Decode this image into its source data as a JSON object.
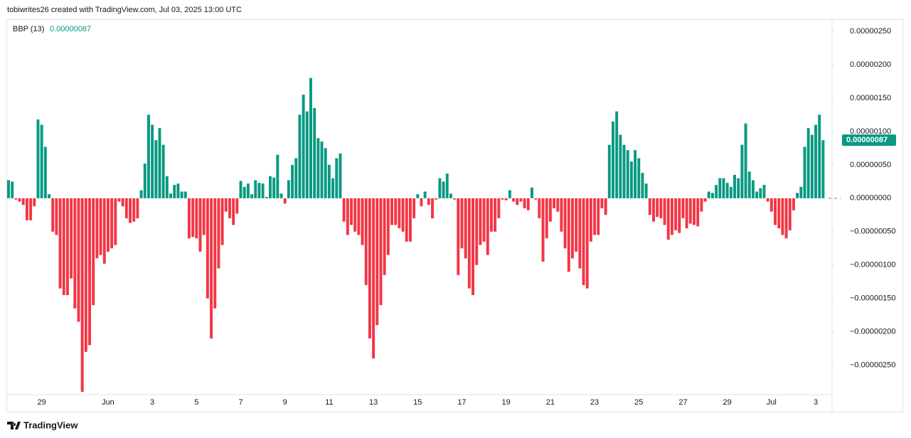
{
  "header": "tobiwrites26 created with TradingView.com, Jul 03, 2025 13:00 UTC",
  "footer": "TradingView",
  "chart_data": {
    "type": "bar",
    "indicator": "BBP (13)",
    "last_value_label": "0.00000087",
    "positive_color": "#089981",
    "negative_color": "#f23645",
    "grid": false,
    "ylim": [
      -2.94e-06,
      2.67e-06
    ],
    "yticks": [
      {
        "value": 2.5e-06,
        "label": "0.00000250"
      },
      {
        "value": 2e-06,
        "label": "0.00000200"
      },
      {
        "value": 1.5e-06,
        "label": "0.00000150"
      },
      {
        "value": 1e-06,
        "label": "0.00000100"
      },
      {
        "value": 5e-07,
        "label": "0.00000050"
      },
      {
        "value": 0,
        "label": "0.00000000"
      },
      {
        "value": -5e-07,
        "label": "−0.00000050"
      },
      {
        "value": -1e-06,
        "label": "−0.00000100"
      },
      {
        "value": -1.5e-06,
        "label": "−0.00000150"
      },
      {
        "value": -2e-06,
        "label": "−0.00000200"
      },
      {
        "value": -2.5e-06,
        "label": "−0.00000250"
      }
    ],
    "categories": [
      null,
      null,
      null,
      null,
      null,
      null,
      null,
      null,
      null,
      "29",
      null,
      null,
      null,
      null,
      null,
      null,
      null,
      null,
      null,
      null,
      null,
      null,
      null,
      null,
      null,
      null,
      null,
      "Jun",
      null,
      null,
      null,
      null,
      null,
      null,
      null,
      null,
      null,
      null,
      null,
      "3",
      null,
      null,
      null,
      null,
      null,
      null,
      null,
      null,
      null,
      null,
      null,
      "5",
      null,
      null,
      null,
      null,
      null,
      null,
      null,
      null,
      null,
      null,
      null,
      "7",
      null,
      null,
      null,
      null,
      null,
      null,
      null,
      null,
      null,
      null,
      null,
      "9",
      null,
      null,
      null,
      null,
      null,
      null,
      null,
      null,
      null,
      null,
      null,
      "11",
      null,
      null,
      null,
      null,
      null,
      null,
      null,
      null,
      null,
      null,
      null,
      "13",
      null,
      null,
      null,
      null,
      null,
      null,
      null,
      null,
      null,
      null,
      null,
      "15",
      null,
      null,
      null,
      null,
      null,
      null,
      null,
      null,
      null,
      null,
      null,
      "17",
      null,
      null,
      null,
      null,
      null,
      null,
      null,
      null,
      null,
      null,
      null,
      "19",
      null,
      null,
      null,
      null,
      null,
      null,
      null,
      null,
      null,
      null,
      null,
      "21",
      null,
      null,
      null,
      null,
      null,
      null,
      null,
      null,
      null,
      null,
      null,
      "23",
      null,
      null,
      null,
      null,
      null,
      null,
      null,
      null,
      null,
      null,
      null,
      "25",
      null,
      null,
      null,
      null,
      null,
      null,
      null,
      null,
      null,
      null,
      null,
      "27",
      null,
      null,
      null,
      null,
      null,
      null,
      null,
      null,
      null,
      null,
      null,
      "29",
      null,
      null,
      null,
      null,
      null,
      null,
      null,
      null,
      null,
      null,
      null,
      "Jul",
      null,
      null,
      null,
      null,
      null,
      null,
      null,
      null,
      null,
      null,
      null,
      "3",
      null,
      null
    ],
    "values": [
      2.7e-07,
      2.5e-07,
      -2e-08,
      -5e-08,
      -1e-07,
      -3.3e-07,
      -3.3e-07,
      -1.2e-07,
      1.18e-06,
      1.1e-06,
      7.7e-07,
      6e-08,
      -5e-07,
      -5.5e-07,
      -1.35e-06,
      -1.45e-06,
      -1.45e-06,
      -1.2e-06,
      -1.65e-06,
      -1.85e-06,
      -2.9e-06,
      -2.3e-06,
      -2.2e-06,
      -1.6e-06,
      -9e-07,
      -8.5e-07,
      -9.8e-07,
      -8e-07,
      -7.5e-07,
      -7e-07,
      -5e-08,
      -1.2e-07,
      -3e-07,
      -3.7e-07,
      -3.5e-07,
      -3e-07,
      1.2e-07,
      5.2e-07,
      1.25e-06,
      1.1e-06,
      8.7e-07,
      1.05e-06,
      8e-07,
      3.3e-07,
      7e-08,
      2e-07,
      2.2e-07,
      1e-07,
      1e-07,
      -6e-07,
      -5.8e-07,
      -6e-07,
      -8e-07,
      -5.5e-07,
      -1.5e-06,
      -2.1e-06,
      -1.65e-06,
      -1.05e-06,
      -7e-07,
      -2e-07,
      -3e-07,
      -4e-07,
      -2.3e-07,
      2.6e-07,
      1.7e-07,
      2.2e-07,
      6e-08,
      2.7e-07,
      2.3e-07,
      2.2e-07,
      2e-08,
      3.3e-07,
      3.1e-07,
      6.5e-07,
      7e-08,
      -8e-08,
      2.7e-07,
      5e-07,
      6e-07,
      1.25e-06,
      1.55e-06,
      1.3e-06,
      1.8e-06,
      1.35e-06,
      9e-07,
      8.5e-07,
      7.5e-07,
      5e-07,
      3e-07,
      6e-07,
      6.7e-07,
      -3.5e-07,
      -5.5e-07,
      -4e-07,
      -5e-07,
      -5.5e-07,
      -7e-07,
      -1.3e-06,
      -2.1e-06,
      -2.4e-06,
      -1.9e-06,
      -1.6e-06,
      -1.15e-06,
      -8.5e-07,
      -4e-07,
      -4e-07,
      -4.5e-07,
      -5e-07,
      -6.5e-07,
      -6.5e-07,
      -3e-07,
      6e-08,
      -1.2e-07,
      1e-07,
      -1e-07,
      -3e-07,
      -2e-08,
      3e-07,
      2.5e-07,
      3.7e-07,
      7e-08,
      -2e-08,
      -1.15e-06,
      -7.5e-07,
      -9e-07,
      -1.35e-06,
      -1.45e-06,
      -1e-06,
      -7e-07,
      -6.5e-07,
      -8.5e-07,
      -5e-07,
      -5e-07,
      -3e-07,
      -2e-08,
      -3e-08,
      1.2e-07,
      -5e-08,
      -1e-07,
      -5e-08,
      -1.5e-07,
      -1.8e-07,
      1.6e-07,
      -2e-08,
      -3e-07,
      -9.5e-07,
      -6e-07,
      -3.5e-07,
      -1.5e-07,
      -2e-07,
      -5e-07,
      -7.5e-07,
      -1.1e-06,
      -9e-07,
      -8e-07,
      -1.05e-06,
      -1.3e-06,
      -1.35e-06,
      -6.5e-07,
      -5.5e-07,
      -5.5e-07,
      -1.5e-07,
      -2.5e-07,
      8e-07,
      1.15e-06,
      1.3e-06,
      9.5e-07,
      8e-07,
      7.2e-07,
      5.5e-07,
      7.2e-07,
      6e-07,
      3.8e-07,
      2.2e-07,
      -2.5e-07,
      -3.5e-07,
      -2.8e-07,
      -3e-07,
      -4e-07,
      -6.2e-07,
      -5.5e-07,
      -4.8e-07,
      -5.2e-07,
      -3e-07,
      -4.5e-07,
      -3.8e-07,
      -4e-07,
      -4.2e-07,
      -2e-07,
      -5e-08,
      1e-07,
      8e-08,
      2e-07,
      3e-07,
      3e-07,
      2.3e-07,
      1.7e-07,
      3.5e-07,
      3e-07,
      8e-07,
      1.12e-06,
      4e-07,
      2.7e-07,
      1e-07,
      1.5e-07,
      2e-07,
      -5e-08,
      -2e-07,
      -4e-07,
      -4.5e-07,
      -5.5e-07,
      -6e-07,
      -4.8e-07,
      -1.8e-07,
      8e-08,
      1.7e-07,
      7.7e-07,
      1.05e-06,
      9.5e-07,
      1.1e-06,
      1.25e-06,
      8.7e-07
    ]
  }
}
